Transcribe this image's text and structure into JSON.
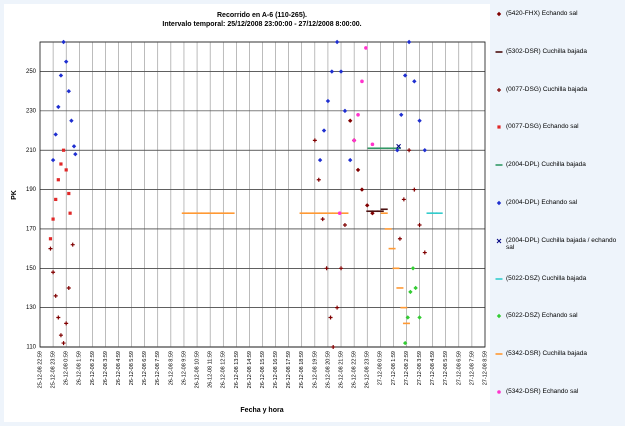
{
  "chart_data": {
    "type": "scatter",
    "title": "Recorrido en A-6 (110-265).",
    "subtitle": "Intervalo temporal: 25/12/2008 23:00:00 - 27/12/2008 8:00:00.",
    "x_label": "Fecha y hora",
    "y_label": "PK",
    "xlim": [
      0,
      34
    ],
    "ylim": [
      110,
      265
    ],
    "yticks": [
      110,
      130,
      150,
      170,
      190,
      210,
      230,
      250
    ],
    "grid": true,
    "legend": "right",
    "xticks": [
      {
        "value": 0,
        "label": "25-12-08 22:59"
      },
      {
        "value": 1,
        "label": "25-12-08 23:59"
      },
      {
        "value": 2,
        "label": "26-12-08 0:59"
      },
      {
        "value": 3,
        "label": "26-12-08 1:59"
      },
      {
        "value": 4,
        "label": "26-12-08 2:59"
      },
      {
        "value": 5,
        "label": "26-12-08 3:59"
      },
      {
        "value": 6,
        "label": "26-12-08 4:59"
      },
      {
        "value": 7,
        "label": "26-12-08 5:59"
      },
      {
        "value": 8,
        "label": "26-12-08 6:59"
      },
      {
        "value": 9,
        "label": "26-12-08 7:59"
      },
      {
        "value": 10,
        "label": "26-12-08 8:59"
      },
      {
        "value": 11,
        "label": "26-12-08 9:59"
      },
      {
        "value": 12,
        "label": "26-12-08 10:59"
      },
      {
        "value": 13,
        "label": "26-12-08 11:59"
      },
      {
        "value": 14,
        "label": "26-12-08 12:59"
      },
      {
        "value": 15,
        "label": "26-12-08 13:59"
      },
      {
        "value": 16,
        "label": "26-12-08 14:59"
      },
      {
        "value": 17,
        "label": "26-12-08 15:59"
      },
      {
        "value": 18,
        "label": "26-12-08 16:59"
      },
      {
        "value": 19,
        "label": "26-12-08 17:59"
      },
      {
        "value": 20,
        "label": "26-12-08 18:59"
      },
      {
        "value": 21,
        "label": "26-12-08 19:59"
      },
      {
        "value": 22,
        "label": "26-12-08 20:59"
      },
      {
        "value": 23,
        "label": "26-12-08 21:59"
      },
      {
        "value": 24,
        "label": "26-12-08 22:59"
      },
      {
        "value": 25,
        "label": "26-12-08 23:59"
      },
      {
        "value": 26,
        "label": "27-12-08 0:59"
      },
      {
        "value": 27,
        "label": "27-12-08 1:59"
      },
      {
        "value": 28,
        "label": "27-12-08 2:59"
      },
      {
        "value": 29,
        "label": "27-12-08 3:59"
      },
      {
        "value": 30,
        "label": "27-12-08 4:59"
      },
      {
        "value": 31,
        "label": "27-12-08 5:59"
      },
      {
        "value": 32,
        "label": "27-12-08 6:59"
      },
      {
        "value": 33,
        "label": "27-12-08 7:59"
      },
      {
        "value": 34,
        "label": "27-12-08 8:59"
      }
    ],
    "series": [
      {
        "name": "(5420-FHX) Echando sal",
        "color": "#800000",
        "marker": "diamond",
        "x": [
          23.7,
          24.0,
          24.3,
          24.6,
          25.0,
          25.4
        ],
        "values": [
          225,
          215,
          200,
          190,
          182,
          178
        ]
      },
      {
        "name": "(5302-DSR) Cuchilla bajada",
        "color": "#4d1010",
        "marker": "dash",
        "x": [
          25.2,
          25.6,
          26.0,
          26.3
        ],
        "values": [
          179,
          179,
          179,
          180
        ]
      },
      {
        "name": "(0077-DSG) Cuchilla bajada",
        "color": "#800000",
        "marker": "plus",
        "x": [
          0.8,
          1.0,
          1.2,
          1.4,
          1.6,
          1.8,
          2.0,
          2.2,
          2.5,
          21.0,
          21.3,
          21.6,
          21.9,
          22.2,
          22.4,
          22.7,
          23.0,
          23.3,
          27.5,
          27.8,
          28.2,
          28.6,
          29.0,
          29.4
        ],
        "values": [
          160,
          148,
          136,
          125,
          116,
          112,
          122,
          140,
          162,
          215,
          195,
          175,
          150,
          125,
          110,
          130,
          150,
          172,
          165,
          185,
          210,
          190,
          172,
          158
        ]
      },
      {
        "name": "(0077-DSG) Echando sal",
        "color": "#e02828",
        "marker": "square",
        "x": [
          0.8,
          1.0,
          1.2,
          1.4,
          1.6,
          1.8,
          2.0,
          2.2,
          2.3
        ],
        "values": [
          165,
          175,
          185,
          195,
          203,
          210,
          200,
          188,
          178
        ]
      },
      {
        "name": "(2004-DPL) Cuchilla bajada",
        "color": "#339966",
        "marker": "dash",
        "x": [
          25.3,
          25.8,
          26.3,
          26.8,
          27.3
        ],
        "values": [
          211,
          211,
          211,
          211,
          211
        ]
      },
      {
        "name": "(2004-DPL) Echando sal",
        "color": "#1f2fd0",
        "marker": "diamond",
        "x": [
          1.0,
          1.2,
          1.4,
          1.6,
          1.8,
          2.0,
          2.2,
          2.4,
          2.6,
          2.7,
          21.4,
          21.7,
          22.0,
          22.3,
          22.7,
          23.0,
          23.3,
          23.7,
          27.3,
          27.6,
          27.9,
          28.2,
          28.6,
          29.0,
          29.4
        ],
        "values": [
          205,
          218,
          232,
          248,
          265,
          255,
          240,
          225,
          212,
          208,
          205,
          220,
          235,
          250,
          265,
          250,
          230,
          205,
          210,
          228,
          248,
          265,
          245,
          225,
          210
        ]
      },
      {
        "name": "(2004-DPL) Cuchilla bajada / echando sal",
        "color": "#000080",
        "marker": "x",
        "x": [
          27.4
        ],
        "values": [
          212
        ]
      },
      {
        "name": "(5022-DSZ) Cuchilla bajada",
        "color": "#33cccc",
        "marker": "dash",
        "x": [
          29.8,
          30.1,
          30.5
        ],
        "values": [
          178,
          178,
          178
        ]
      },
      {
        "name": "(5022-DSZ) Echando sal",
        "color": "#33cc33",
        "marker": "diamond",
        "x": [
          27.9,
          28.1,
          28.3,
          28.5,
          28.7,
          29.0
        ],
        "values": [
          112,
          125,
          138,
          150,
          140,
          125
        ]
      },
      {
        "name": "(5342-DSR) Cuchilla bajada",
        "color": "#ff9933",
        "marker": "dash",
        "x": [
          11.1,
          11.6,
          12.1,
          12.6,
          13.1,
          13.6,
          14.1,
          14.6,
          20.1,
          20.6,
          21.1,
          21.6,
          22.1,
          22.6,
          23.3,
          26.3,
          26.6,
          26.9,
          27.2,
          27.5,
          27.8,
          28.0
        ],
        "values": [
          178,
          178,
          178,
          178,
          178,
          178,
          178,
          178,
          178,
          178,
          178,
          178,
          178,
          178,
          178,
          178,
          170,
          160,
          150,
          140,
          130,
          122
        ]
      },
      {
        "name": "(5342-DSR) Echando sal",
        "color": "#ff33cc",
        "marker": "circle",
        "x": [
          22.9,
          24.0,
          24.3,
          24.6,
          24.9,
          25.4
        ],
        "values": [
          178,
          215,
          228,
          245,
          262,
          213
        ]
      }
    ]
  }
}
